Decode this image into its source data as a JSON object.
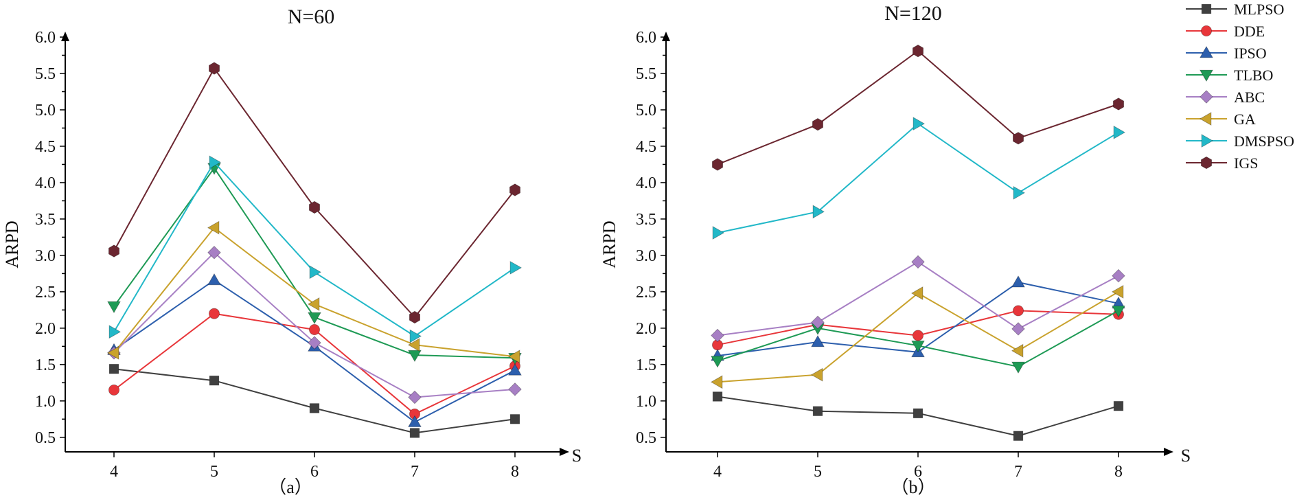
{
  "chart_data": [
    {
      "type": "line",
      "title": "N=60",
      "caption": "（a）",
      "xlabel": "S",
      "ylabel": "ARPD",
      "categories": [
        "4",
        "5",
        "6",
        "7",
        "8"
      ],
      "ylim": [
        0.3,
        6.0
      ],
      "yticks": [
        "0.5",
        "1.0",
        "1.5",
        "2.0",
        "2.5",
        "3.0",
        "3.5",
        "4.0",
        "4.5",
        "5.0",
        "5.5",
        "6.0"
      ],
      "series": [
        {
          "name": "MLPSO",
          "values": [
            1.44,
            1.28,
            0.9,
            0.56,
            0.75
          ]
        },
        {
          "name": "DDE",
          "values": [
            1.15,
            2.2,
            1.98,
            0.82,
            1.48
          ]
        },
        {
          "name": "IPSO",
          "values": [
            1.7,
            2.66,
            1.75,
            0.71,
            1.42
          ]
        },
        {
          "name": "TLBO",
          "values": [
            2.3,
            4.2,
            2.15,
            1.63,
            1.59
          ]
        },
        {
          "name": "ABC",
          "values": [
            1.66,
            3.04,
            1.8,
            1.05,
            1.16
          ]
        },
        {
          "name": "GA",
          "values": [
            1.66,
            3.38,
            2.33,
            1.77,
            1.61
          ]
        },
        {
          "name": "DMSPSO",
          "values": [
            1.95,
            4.28,
            2.77,
            1.89,
            2.83
          ]
        },
        {
          "name": "IGS",
          "values": [
            3.06,
            5.57,
            3.66,
            2.15,
            3.9
          ]
        }
      ]
    },
    {
      "type": "line",
      "title": "N=120",
      "caption": "（b）",
      "xlabel": "S",
      "ylabel": "ARPD",
      "categories": [
        "4",
        "5",
        "6",
        "7",
        "8"
      ],
      "ylim": [
        0.3,
        6.0
      ],
      "yticks": [
        "0.5",
        "1.0",
        "1.5",
        "2.0",
        "2.5",
        "3.0",
        "3.5",
        "4.0",
        "4.5",
        "5.0",
        "5.5",
        "6.0"
      ],
      "series": [
        {
          "name": "MLPSO",
          "values": [
            1.06,
            0.86,
            0.83,
            0.52,
            0.93
          ]
        },
        {
          "name": "DDE",
          "values": [
            1.77,
            2.05,
            1.9,
            2.24,
            2.19
          ]
        },
        {
          "name": "IPSO",
          "values": [
            1.62,
            1.81,
            1.67,
            2.63,
            2.34
          ]
        },
        {
          "name": "TLBO",
          "values": [
            1.55,
            2.0,
            1.76,
            1.47,
            2.24
          ]
        },
        {
          "name": "ABC",
          "values": [
            1.9,
            2.08,
            2.91,
            1.99,
            2.72
          ]
        },
        {
          "name": "GA",
          "values": [
            1.26,
            1.36,
            2.48,
            1.69,
            2.5
          ]
        },
        {
          "name": "DMSPSO",
          "values": [
            3.31,
            3.6,
            4.81,
            3.86,
            4.69
          ]
        },
        {
          "name": "IGS",
          "values": [
            4.25,
            4.8,
            5.81,
            4.61,
            5.08
          ]
        }
      ]
    }
  ],
  "legend": [
    {
      "name": "MLPSO",
      "color": "#404040",
      "marker": "square"
    },
    {
      "name": "DDE",
      "color": "#e8363a",
      "marker": "circle"
    },
    {
      "name": "IPSO",
      "color": "#2d5fad",
      "marker": "triangle-up"
    },
    {
      "name": "TLBO",
      "color": "#1e9a55",
      "marker": "triangle-down"
    },
    {
      "name": "ABC",
      "color": "#a77fc4",
      "marker": "diamond"
    },
    {
      "name": "GA",
      "color": "#c9a22d",
      "marker": "triangle-left"
    },
    {
      "name": "DMSPSO",
      "color": "#22b8c8",
      "marker": "triangle-right"
    },
    {
      "name": "IGS",
      "color": "#6b2630",
      "marker": "hexagon"
    }
  ]
}
